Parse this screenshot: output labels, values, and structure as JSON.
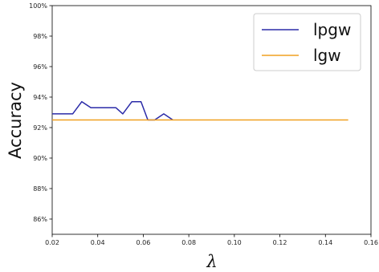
{
  "chart_data": {
    "type": "line",
    "title": "",
    "xlabel": "λ",
    "ylabel": "Accuracy",
    "xlim": [
      0.02,
      0.16
    ],
    "ylim": [
      85,
      100
    ],
    "xticks": [
      0.02,
      0.04,
      0.06,
      0.08,
      0.1,
      0.12,
      0.14,
      0.16
    ],
    "xtick_labels": [
      "0.02",
      "0.04",
      "0.06",
      "0.08",
      "0.10",
      "0.12",
      "0.14",
      "0.16"
    ],
    "yticks": [
      86,
      88,
      90,
      92,
      94,
      96,
      98,
      100
    ],
    "ytick_labels": [
      "86%",
      "88%",
      "90%",
      "92%",
      "94%",
      "96%",
      "98%",
      "100%"
    ],
    "grid": false,
    "legend_position": "top-right",
    "series": [
      {
        "name": "lpgw",
        "color": "#2b2ba8",
        "x": [
          0.02,
          0.023,
          0.026,
          0.029,
          0.033,
          0.037,
          0.041,
          0.045,
          0.048,
          0.051,
          0.055,
          0.059,
          0.062,
          0.065,
          0.069,
          0.073
        ],
        "y": [
          92.9,
          92.9,
          92.9,
          92.9,
          93.7,
          93.3,
          93.3,
          93.3,
          93.3,
          92.9,
          93.7,
          93.7,
          92.5,
          92.5,
          92.9,
          92.5
        ]
      },
      {
        "name": "lgw",
        "color": "#f0a020",
        "x": [
          0.02,
          0.15
        ],
        "y": [
          92.5,
          92.5
        ]
      }
    ]
  }
}
